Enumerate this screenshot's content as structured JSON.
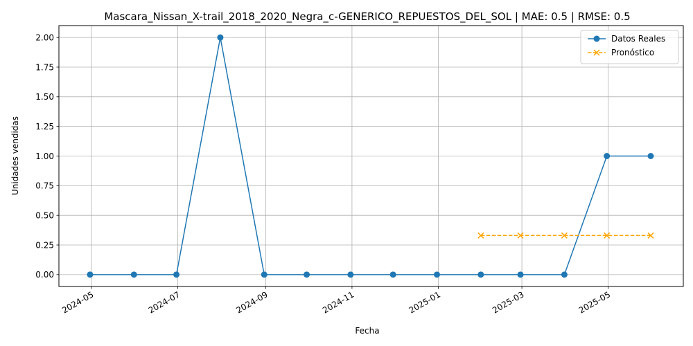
{
  "chart_data": {
    "type": "line",
    "title": "Mascara_Nissan_X-trail_2018_2020_Negra_c-GENERICO_REPUESTOS_DEL_SOL | MAE: 0.5 | RMSE: 0.5",
    "xlabel": "Fecha",
    "ylabel": "Unidades vendidas",
    "xlim": [
      "2024-04-08",
      "2025-06-23"
    ],
    "ylim": [
      -0.1,
      2.1
    ],
    "x_ticks": [
      "2024-05",
      "2024-07",
      "2024-09",
      "2024-11",
      "2025-01",
      "2025-03",
      "2025-05"
    ],
    "x_tick_dates": [
      "2024-05-01",
      "2024-07-01",
      "2024-09-01",
      "2024-11-01",
      "2025-01-01",
      "2025-03-01",
      "2025-05-01"
    ],
    "y_ticks": [
      0.0,
      0.25,
      0.5,
      0.75,
      1.0,
      1.25,
      1.5,
      1.75,
      2.0
    ],
    "y_tick_labels": [
      "0.00",
      "0.25",
      "0.50",
      "0.75",
      "1.00",
      "1.25",
      "1.50",
      "1.75",
      "2.00"
    ],
    "grid": true,
    "legend_position": "top-right",
    "series": [
      {
        "name": "Datos Reales",
        "color": "#1f77b4",
        "line_style": "solid",
        "marker": "circle",
        "x": [
          "2024-04-30",
          "2024-05-31",
          "2024-06-30",
          "2024-07-31",
          "2024-08-31",
          "2024-09-30",
          "2024-10-31",
          "2024-11-30",
          "2024-12-31",
          "2025-01-31",
          "2025-02-28",
          "2025-03-31",
          "2025-04-30",
          "2025-05-31"
        ],
        "values": [
          0,
          0,
          0,
          2,
          0,
          0,
          0,
          0,
          0,
          0,
          0,
          0,
          1,
          1
        ]
      },
      {
        "name": "Pronóstico",
        "color": "#ffa500",
        "line_style": "dashed",
        "marker": "x",
        "x": [
          "2025-01-31",
          "2025-02-28",
          "2025-03-31",
          "2025-04-30",
          "2025-05-31"
        ],
        "values": [
          0.33,
          0.33,
          0.33,
          0.33,
          0.33
        ]
      }
    ]
  }
}
